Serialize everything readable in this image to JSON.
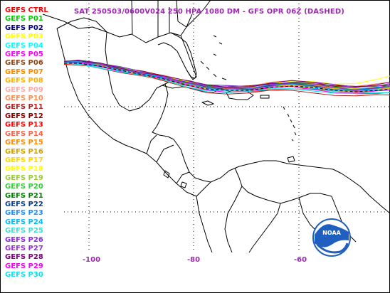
{
  "title": {
    "text": "SAT 250503/0600V024  250 HPA 1080 DM - GFS OPR 06Z (DASHED)",
    "color": "#9c27b0"
  },
  "legend": [
    {
      "label": "GEFS CTRL",
      "color": "#ff0000"
    },
    {
      "label": "GEFS P01",
      "color": "#00cc00"
    },
    {
      "label": "GEFS P02",
      "color": "#000080"
    },
    {
      "label": "GEFS P03",
      "color": "#ffff00"
    },
    {
      "label": "GEFS P04",
      "color": "#00ffff"
    },
    {
      "label": "GEFS P05",
      "color": "#ff00ff"
    },
    {
      "label": "GEFS P06",
      "color": "#8b4513"
    },
    {
      "label": "GEFS P07",
      "color": "#ff8c00"
    },
    {
      "label": "GEFS P08",
      "color": "#ffb000"
    },
    {
      "label": "GEFS P09",
      "color": "#ffaaaa"
    },
    {
      "label": "GEFS P10",
      "color": "#ff8c50"
    },
    {
      "label": "GEFS P11",
      "color": "#b22222"
    },
    {
      "label": "GEFS P12",
      "color": "#8b0000"
    },
    {
      "label": "GEFS P13",
      "color": "#ff0000"
    },
    {
      "label": "GEFS P14",
      "color": "#ff6347"
    },
    {
      "label": "GEFS P15",
      "color": "#ff8c00"
    },
    {
      "label": "GEFS P16",
      "color": "#d2a000"
    },
    {
      "label": "GEFS P17",
      "color": "#ffd700"
    },
    {
      "label": "GEFS P18",
      "color": "#ffff00"
    },
    {
      "label": "GEFS P19",
      "color": "#9acd32"
    },
    {
      "label": "GEFS P20",
      "color": "#32cd32"
    },
    {
      "label": "GEFS P21",
      "color": "#008000"
    },
    {
      "label": "GEFS P22",
      "color": "#0a3d91"
    },
    {
      "label": "GEFS P23",
      "color": "#1e90ff"
    },
    {
      "label": "GEFS P24",
      "color": "#00bfff"
    },
    {
      "label": "GEFS P25",
      "color": "#40e0d0"
    },
    {
      "label": "GEFS P26",
      "color": "#8a2be2"
    },
    {
      "label": "GEFS P27",
      "color": "#9932cc"
    },
    {
      "label": "GEFS P28",
      "color": "#800080"
    },
    {
      "label": "GEFS P29",
      "color": "#ff00ff"
    },
    {
      "label": "GEFS P30",
      "color": "#00e5ee"
    }
  ],
  "longitude_labels": [
    {
      "value": -100,
      "text": "-100"
    },
    {
      "value": -80,
      "text": "-80"
    },
    {
      "value": -60,
      "text": "-60"
    }
  ],
  "axis_label_color": "#9c27b0",
  "logo": {
    "text": "NOAA",
    "color": "#1f5fbf"
  }
}
